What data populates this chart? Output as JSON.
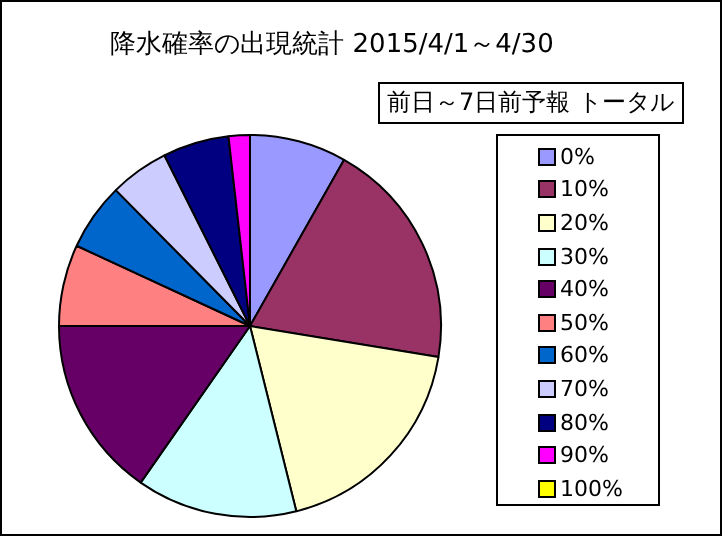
{
  "chart_data": {
    "type": "pie",
    "title": "降水確率の出現統計 2015/4/1～4/30",
    "subtitle": "前日～7日前予報 トータル",
    "categories": [
      "0%",
      "10%",
      "20%",
      "30%",
      "40%",
      "50%",
      "60%",
      "70%",
      "80%",
      "90%",
      "100%"
    ],
    "values": [
      8.2,
      19.4,
      18.5,
      13.6,
      15.3,
      6.9,
      5.7,
      5.0,
      5.6,
      1.8,
      0
    ],
    "colors": [
      "#9999ff",
      "#993366",
      "#ffffcc",
      "#ccffff",
      "#660066",
      "#ff8080",
      "#0066cc",
      "#ccccff",
      "#000080",
      "#ff00ff",
      "#ffff00"
    ],
    "legend": "right"
  }
}
